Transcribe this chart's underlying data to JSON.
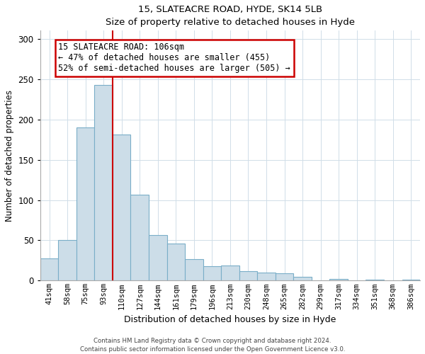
{
  "title1": "15, SLATEACRE ROAD, HYDE, SK14 5LB",
  "title2": "Size of property relative to detached houses in Hyde",
  "xlabel": "Distribution of detached houses by size in Hyde",
  "ylabel": "Number of detached properties",
  "bar_labels": [
    "41sqm",
    "58sqm",
    "75sqm",
    "93sqm",
    "110sqm",
    "127sqm",
    "144sqm",
    "161sqm",
    "179sqm",
    "196sqm",
    "213sqm",
    "230sqm",
    "248sqm",
    "265sqm",
    "282sqm",
    "299sqm",
    "317sqm",
    "334sqm",
    "351sqm",
    "368sqm",
    "386sqm"
  ],
  "bar_values": [
    28,
    50,
    190,
    243,
    181,
    107,
    57,
    46,
    27,
    18,
    19,
    12,
    10,
    9,
    5,
    0,
    2,
    0,
    1,
    0,
    1
  ],
  "bar_color": "#ccdde8",
  "bar_edgecolor": "#7aaec8",
  "vline_x_idx": 3.5,
  "vline_color": "#cc0000",
  "annotation_lines": [
    "15 SLATEACRE ROAD: 106sqm",
    "← 47% of detached houses are smaller (455)",
    "52% of semi-detached houses are larger (505) →"
  ],
  "annotation_box_color": "#ffffff",
  "annotation_box_edgecolor": "#cc0000",
  "ylim": [
    0,
    310
  ],
  "yticks": [
    0,
    50,
    100,
    150,
    200,
    250,
    300
  ],
  "footer1": "Contains HM Land Registry data © Crown copyright and database right 2024.",
  "footer2": "Contains public sector information licensed under the Open Government Licence v3.0."
}
